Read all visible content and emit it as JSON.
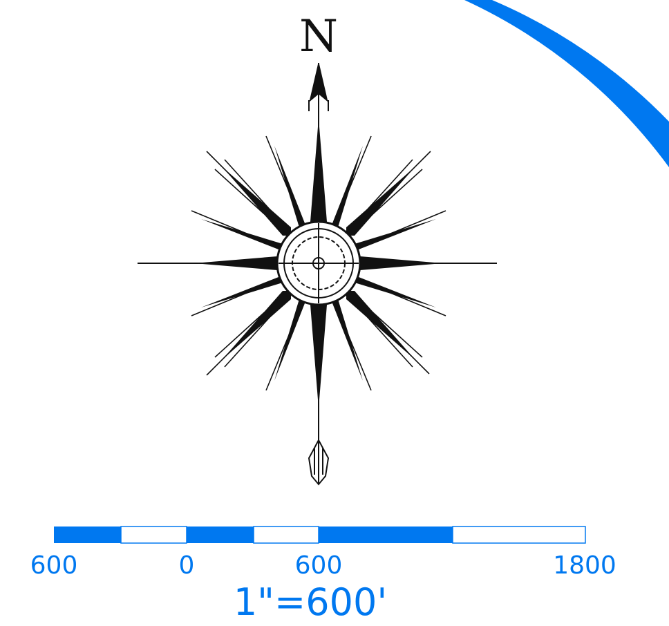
{
  "north_arrow": {
    "label": "N"
  },
  "scale_bar": {
    "tick_labels": [
      "600",
      "0",
      "600",
      "1800"
    ],
    "ratio_text": "1\"=600'",
    "segments": [
      {
        "fill": "blue"
      },
      {
        "fill": "white"
      },
      {
        "fill": "blue"
      },
      {
        "fill": "white"
      },
      {
        "fill": "blue"
      },
      {
        "fill": "white"
      }
    ]
  },
  "colors": {
    "accent": "#0078f0",
    "ink": "#111111",
    "paper": "#ffffff"
  },
  "decorations": {
    "corner_arc": "map-neatline-arc"
  }
}
